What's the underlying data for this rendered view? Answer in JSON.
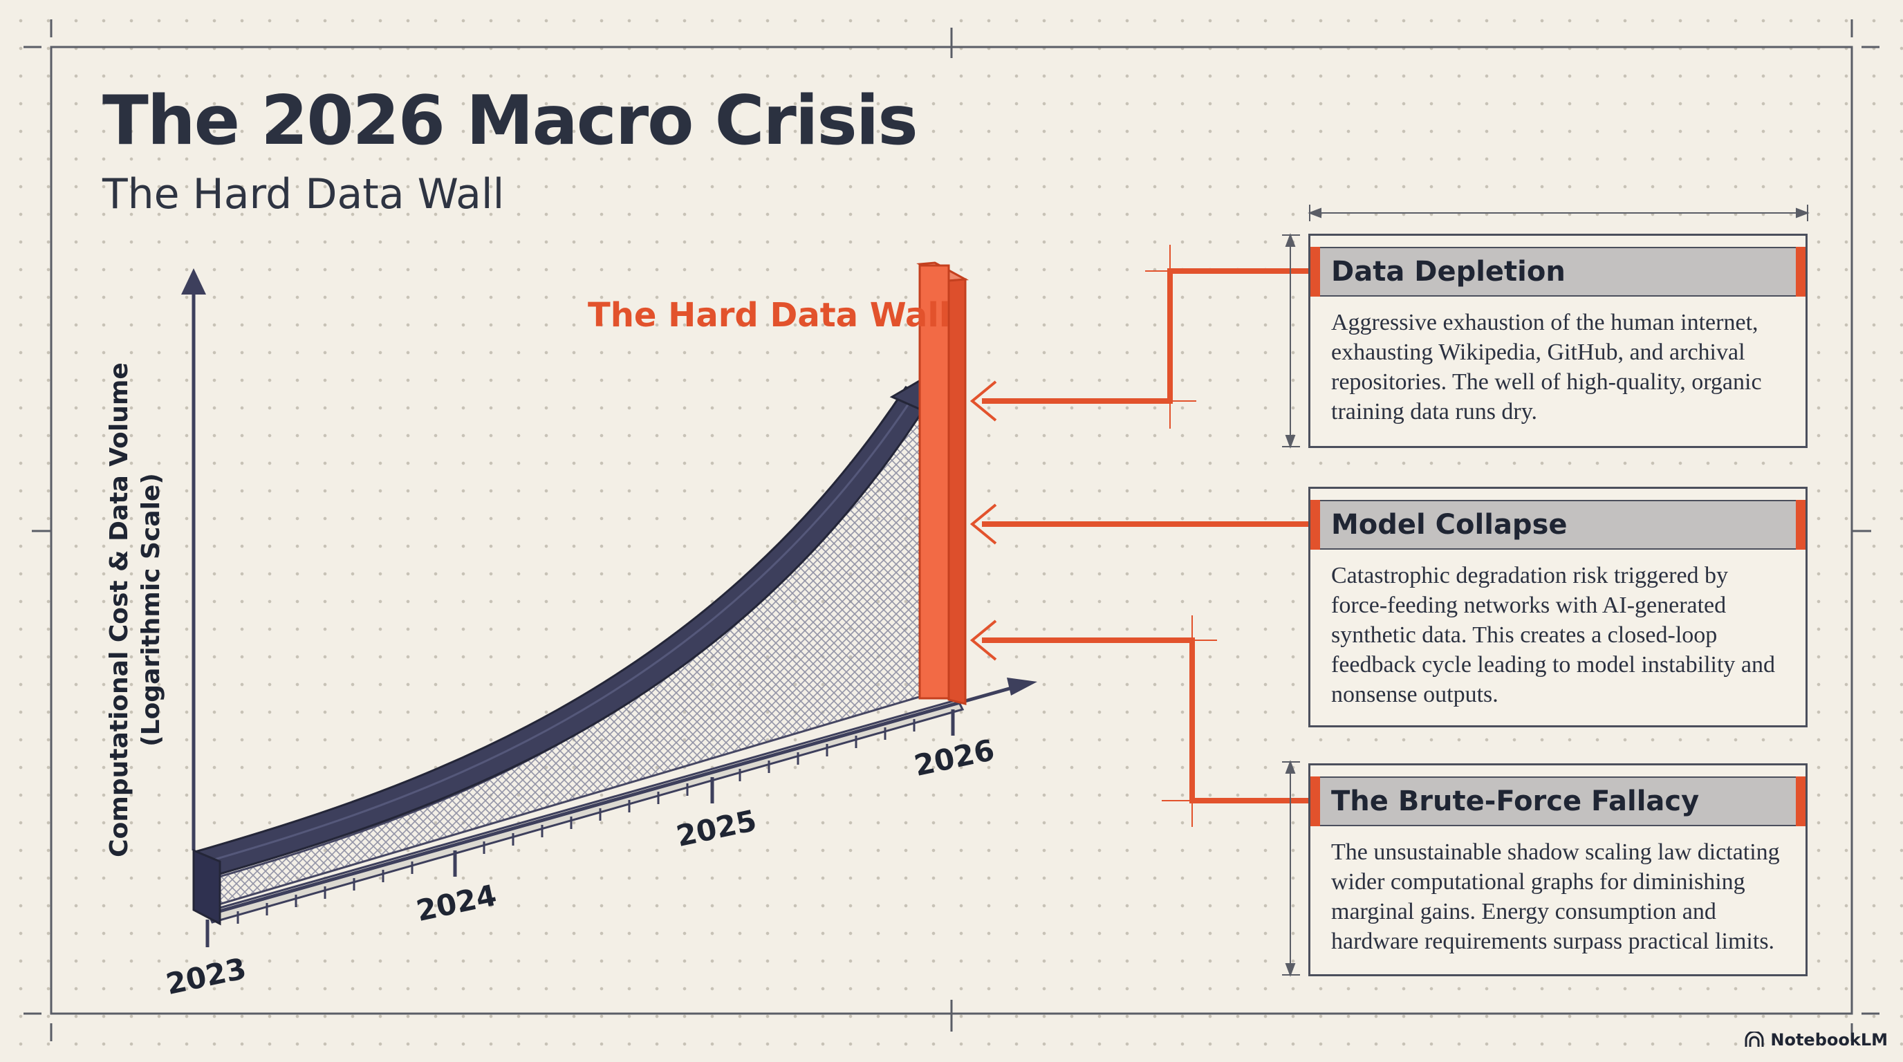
{
  "header": {
    "title": "The 2026 Macro Crisis",
    "subtitle": "The Hard Data Wall"
  },
  "diagram": {
    "wall_label": "The Hard Data Wall",
    "y_axis_label_line1": "Computational Cost & Data Volume",
    "y_axis_label_line2": "(Logarithmic Scale)",
    "x_ticks": [
      "2023",
      "2024",
      "2025",
      "2026"
    ]
  },
  "cards": [
    {
      "title": "Data Depletion",
      "body": "Aggressive exhaustion of the human internet, exhausting Wikipedia, GitHub, and archival repositories. The well of high-quality, organic training data runs dry."
    },
    {
      "title": "Model Collapse",
      "body": "Catastrophic degradation risk triggered by force-feeding networks with AI-generated synthetic data. This creates a closed-loop feedback cycle leading to model instability and nonsense outputs."
    },
    {
      "title": "The Brute-Force Fallacy",
      "body": "The unsustainable shadow scaling law dictating wider computational graphs for diminishing marginal gains. Energy consumption and hardware requirements surpass practical limits."
    }
  ],
  "footer": {
    "brand": "NotebookLM",
    "brand_icon": "notebooklm-logo-icon"
  },
  "colors": {
    "accent": "#e2522c",
    "navy": "#3d3f5c",
    "ink": "#2b3140",
    "background": "#f3efe6"
  }
}
